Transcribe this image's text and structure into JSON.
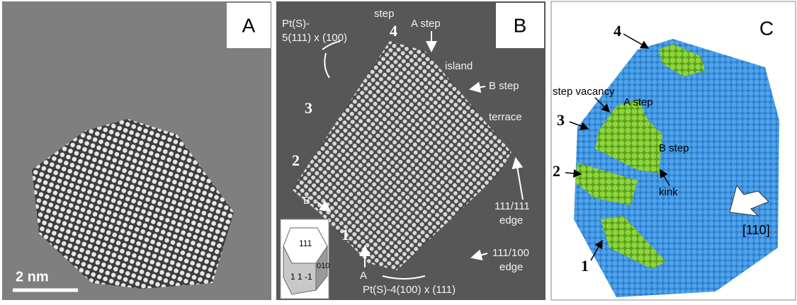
{
  "panels": [
    {
      "label": "A",
      "scale_bar": "2 nm"
    },
    {
      "label": "B",
      "annotations": [
        "step",
        "A step",
        "Pt(S)-",
        "5(111) x (100)",
        "4",
        "island",
        "B step",
        "3",
        "terrace",
        "2",
        "B",
        "111/111",
        "edge",
        "1",
        "111/100",
        "edge",
        "A",
        "Pt(S)-4(100) x (111)"
      ],
      "inset": [
        "111",
        "010",
        "1 1 -1"
      ]
    },
    {
      "label": "C",
      "annotations": [
        "4",
        "step vacancy",
        "A step",
        "3",
        "B step",
        "2",
        "kink",
        "1",
        "[110]"
      ]
    }
  ]
}
